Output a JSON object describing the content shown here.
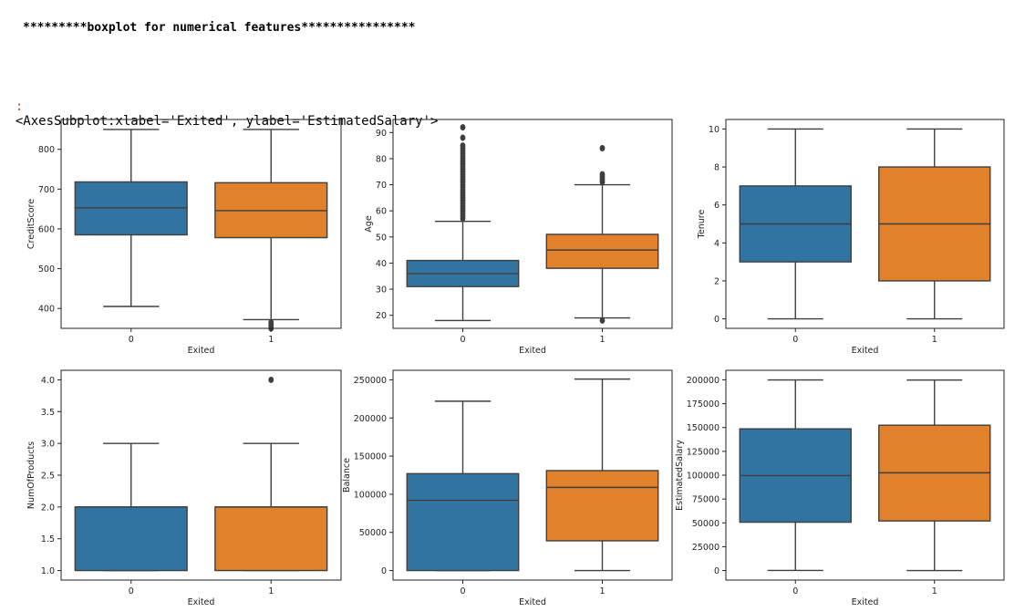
{
  "heading": "*********boxplot for numerical features****************",
  "output": {
    "prompt": ":",
    "text": "<AxesSubplot:xlabel='Exited', ylabel='EstimatedSalary'>"
  },
  "colors": {
    "class0": "#3274a1",
    "class1": "#e1812c",
    "line": "#3f3f3f",
    "frame": "#222222"
  },
  "chart_data": [
    {
      "type": "boxplot",
      "xlabel": "Exited",
      "ylabel": "CreditScore",
      "categories": [
        "0",
        "1"
      ],
      "ylim": [
        350,
        875
      ],
      "yticks": [
        400,
        500,
        600,
        700,
        800
      ],
      "ytick_labels": [
        "400",
        "500",
        "600",
        "700",
        "800"
      ],
      "boxes": [
        {
          "category": "0",
          "whisker_low": 405,
          "q1": 585,
          "median": 653,
          "q3": 718,
          "whisker_high": 850,
          "outliers": []
        },
        {
          "category": "1",
          "whisker_low": 372,
          "q1": 578,
          "median": 646,
          "q3": 716,
          "whisker_high": 850,
          "outliers": [
            350,
            355,
            358,
            362,
            365
          ]
        }
      ]
    },
    {
      "type": "boxplot",
      "xlabel": "Exited",
      "ylabel": "Age",
      "categories": [
        "0",
        "1"
      ],
      "ylim": [
        15,
        95
      ],
      "yticks": [
        20,
        30,
        40,
        50,
        60,
        70,
        80,
        90
      ],
      "ytick_labels": [
        "20",
        "30",
        "40",
        "50",
        "60",
        "70",
        "80",
        "90"
      ],
      "boxes": [
        {
          "category": "0",
          "whisker_low": 18,
          "q1": 31,
          "median": 36,
          "q3": 41,
          "whisker_high": 56,
          "outliers": [
            57,
            58,
            59,
            60,
            61,
            62,
            63,
            64,
            65,
            66,
            67,
            68,
            69,
            70,
            71,
            72,
            73,
            74,
            75,
            76,
            77,
            78,
            79,
            80,
            81,
            82,
            83,
            84,
            85,
            88,
            92
          ]
        },
        {
          "category": "1",
          "whisker_low": 19,
          "q1": 38,
          "median": 45,
          "q3": 51,
          "whisker_high": 70,
          "outliers": [
            18,
            71,
            72,
            73,
            74,
            84
          ]
        }
      ]
    },
    {
      "type": "boxplot",
      "xlabel": "Exited",
      "ylabel": "Tenure",
      "categories": [
        "0",
        "1"
      ],
      "ylim": [
        -0.5,
        10.5
      ],
      "yticks": [
        0,
        2,
        4,
        6,
        8,
        10
      ],
      "ytick_labels": [
        "0",
        "2",
        "4",
        "6",
        "8",
        "10"
      ],
      "boxes": [
        {
          "category": "0",
          "whisker_low": 0,
          "q1": 3,
          "median": 5,
          "q3": 7,
          "whisker_high": 10,
          "outliers": []
        },
        {
          "category": "1",
          "whisker_low": 0,
          "q1": 2,
          "median": 5,
          "q3": 8,
          "whisker_high": 10,
          "outliers": []
        }
      ]
    },
    {
      "type": "boxplot",
      "xlabel": "Exited",
      "ylabel": "NumOfProducts",
      "categories": [
        "0",
        "1"
      ],
      "ylim": [
        0.85,
        4.15
      ],
      "yticks": [
        1.0,
        1.5,
        2.0,
        2.5,
        3.0,
        3.5,
        4.0
      ],
      "ytick_labels": [
        "1.0",
        "1.5",
        "2.0",
        "2.5",
        "3.0",
        "3.5",
        "4.0"
      ],
      "boxes": [
        {
          "category": "0",
          "whisker_low": 1,
          "q1": 1,
          "median": 2,
          "q3": 2,
          "whisker_high": 3,
          "outliers": []
        },
        {
          "category": "1",
          "whisker_low": 1,
          "q1": 1,
          "median": 2,
          "q3": 2,
          "whisker_high": 3,
          "outliers": [
            4
          ]
        }
      ]
    },
    {
      "type": "boxplot",
      "xlabel": "Exited",
      "ylabel": "Balance",
      "categories": [
        "0",
        "1"
      ],
      "ylim": [
        -12500,
        262500
      ],
      "yticks": [
        0,
        50000,
        100000,
        150000,
        200000,
        250000
      ],
      "ytick_labels": [
        "0",
        "50000",
        "100000",
        "150000",
        "200000",
        "250000"
      ],
      "boxes": [
        {
          "category": "0",
          "whisker_low": 0,
          "q1": 0,
          "median": 92000,
          "q3": 127000,
          "whisker_high": 222000,
          "outliers": []
        },
        {
          "category": "1",
          "whisker_low": 0,
          "q1": 39000,
          "median": 109000,
          "q3": 131000,
          "whisker_high": 251000,
          "outliers": []
        }
      ]
    },
    {
      "type": "boxplot",
      "xlabel": "Exited",
      "ylabel": "EstimatedSalary",
      "categories": [
        "0",
        "1"
      ],
      "ylim": [
        -10000,
        210000
      ],
      "yticks": [
        0,
        25000,
        50000,
        75000,
        100000,
        125000,
        150000,
        175000,
        200000
      ],
      "ytick_labels": [
        "0",
        "25000",
        "50000",
        "75000",
        "100000",
        "125000",
        "150000",
        "175000",
        "200000"
      ],
      "boxes": [
        {
          "category": "0",
          "whisker_low": 100,
          "q1": 50700,
          "median": 99600,
          "q3": 148600,
          "whisker_high": 199900,
          "outliers": []
        },
        {
          "category": "1",
          "whisker_low": 10,
          "q1": 52000,
          "median": 102500,
          "q3": 152400,
          "whisker_high": 199800,
          "outliers": []
        }
      ]
    }
  ]
}
